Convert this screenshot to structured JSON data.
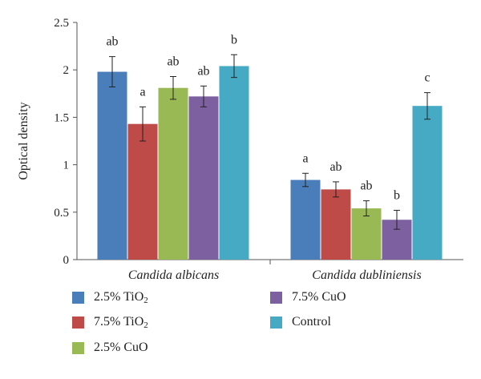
{
  "chart_data": {
    "type": "bar",
    "ylabel": "Optical density",
    "ylim": [
      0,
      2.5
    ],
    "yticks": [
      "0",
      "0.5",
      "1",
      "1.5",
      "2",
      "2.5"
    ],
    "categories": [
      "Candida albicans",
      "Candida dubliniensis"
    ],
    "series": [
      {
        "name": "2.5% TiO",
        "sub": "2",
        "color": "#4a7ebb",
        "values": [
          1.98,
          0.84
        ],
        "errors": [
          0.16,
          0.07
        ],
        "letters": [
          "ab",
          "a"
        ]
      },
      {
        "name": "7.5% TiO",
        "sub": "2",
        "color": "#be4b48",
        "values": [
          1.43,
          0.74
        ],
        "errors": [
          0.18,
          0.08
        ],
        "letters": [
          "a",
          "ab"
        ]
      },
      {
        "name": "2.5% CuO",
        "sub": "",
        "color": "#98b954",
        "values": [
          1.81,
          0.54
        ],
        "errors": [
          0.12,
          0.08
        ],
        "letters": [
          "ab",
          "ab"
        ]
      },
      {
        "name": "7.5% CuO",
        "sub": "",
        "color": "#7d60a0",
        "values": [
          1.72,
          0.42
        ],
        "errors": [
          0.11,
          0.1
        ],
        "letters": [
          "ab",
          "b"
        ]
      },
      {
        "name": "Control",
        "sub": "",
        "color": "#46aac5",
        "values": [
          2.04,
          1.62
        ],
        "errors": [
          0.12,
          0.14
        ],
        "letters": [
          "b",
          "c"
        ]
      }
    ],
    "legend_position": "bottom",
    "grid": false
  }
}
